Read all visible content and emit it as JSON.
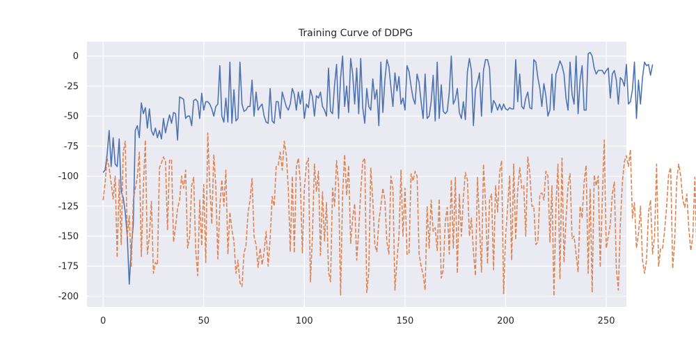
{
  "chart_data": {
    "type": "line",
    "title": "Training Curve of DDPG",
    "xlabel": "",
    "ylabel": "",
    "xlim": [
      -8,
      260
    ],
    "ylim": [
      -209,
      12
    ],
    "xticks": [
      0,
      50,
      100,
      150,
      200,
      250
    ],
    "yticks": [
      0,
      -25,
      -50,
      -75,
      -100,
      -125,
      -150,
      -175,
      -200
    ],
    "grid": true,
    "legend": "none",
    "colors": {
      "background": "#eaeaf2",
      "grid": "#ffffff",
      "series1": "#4c72b0",
      "series2": "#dd8452"
    },
    "series": [
      {
        "style": "solid",
        "color": "#4c72b0",
        "x_start": 0,
        "values": [
          -97,
          -95,
          -82,
          -62,
          -92,
          -68,
          -90,
          -92,
          -69,
          -113,
          -118,
          -130,
          -150,
          -190,
          -160,
          -140,
          -62,
          -58,
          -68,
          -39,
          -48,
          -43,
          -60,
          -44,
          -62,
          -66,
          -60,
          -68,
          -62,
          -69,
          -52,
          -64,
          -56,
          -49,
          -56,
          -47,
          -48,
          -70,
          -34,
          -35,
          -36,
          -52,
          -50,
          -50,
          -58,
          -37,
          -36,
          -38,
          -52,
          -31,
          -45,
          -38,
          -38,
          -40,
          -44,
          -50,
          -42,
          -40,
          -8,
          -50,
          -55,
          -35,
          -55,
          -5,
          -56,
          -28,
          -54,
          -52,
          -5,
          -40,
          -46,
          -45,
          -42,
          -42,
          -20,
          -50,
          -30,
          -45,
          -42,
          -40,
          -50,
          -55,
          -56,
          -27,
          -54,
          -56,
          -38,
          -38,
          -52,
          -30,
          -36,
          -42,
          -45,
          -40,
          -27,
          -32,
          -45,
          -30,
          -40,
          -29,
          -52,
          -40,
          -43,
          -28,
          -34,
          -50,
          -33,
          -35,
          -30,
          -42,
          -45,
          -50,
          -10,
          -46,
          -48,
          -24,
          -7,
          -52,
          -18,
          0,
          -42,
          -25,
          -47,
          -2,
          -15,
          -40,
          -10,
          -48,
          -2,
          -43,
          -56,
          -27,
          -42,
          -45,
          -19,
          -36,
          -28,
          -58,
          -5,
          -47,
          -20,
          -3,
          -9,
          -26,
          -42,
          -14,
          -29,
          -17,
          -40,
          -35,
          -45,
          -8,
          -13,
          -25,
          -35,
          -40,
          -15,
          -22,
          -38,
          -52,
          -15,
          -52,
          -50,
          -38,
          -16,
          -54,
          -5,
          -52,
          -24,
          -46,
          -48,
          -46,
          -30,
          0,
          -40,
          -36,
          -27,
          -47,
          -52,
          -38,
          -53,
          -13,
          -2,
          -12,
          -58,
          -28,
          -22,
          -14,
          -50,
          -12,
          -3,
          -3,
          -10,
          -47,
          -37,
          -40,
          -45,
          -40,
          -45,
          -40,
          -44,
          -45,
          -43,
          -44,
          -44,
          -3,
          -38,
          -15,
          -42,
          -44,
          -35,
          -30,
          -43,
          -44,
          -3,
          -5,
          -18,
          -27,
          -42,
          -23,
          -33,
          -50,
          -45,
          -15,
          -45,
          -15,
          -10,
          -4,
          -8,
          -15,
          -35,
          -45,
          -5,
          -32,
          -40,
          0,
          -48,
          -20,
          -8,
          -45,
          -45,
          2,
          3,
          0,
          -10,
          -15,
          -12,
          -12,
          -12,
          -15,
          -12,
          -10,
          -35,
          -15,
          -12,
          -20,
          -40,
          -18,
          -20,
          -25,
          -7,
          -40,
          -38,
          -28,
          -5,
          -52,
          -20,
          -40,
          -18,
          -5,
          -8,
          -7,
          -16,
          -7
        ]
      },
      {
        "style": "dashed",
        "color": "#dd8452",
        "x_start": 0,
        "values": [
          -120,
          -106,
          -85,
          -93,
          -106,
          -119,
          -100,
          -168,
          -103,
          -157,
          -80,
          -71,
          -150,
          -133,
          -176,
          -120,
          -110,
          -101,
          -80,
          -167,
          -110,
          -70,
          -165,
          -150,
          -121,
          -181,
          -172,
          -174,
          -93,
          -89,
          -84,
          -88,
          -145,
          -87,
          -86,
          -155,
          -142,
          -127,
          -120,
          -100,
          -110,
          -95,
          -160,
          -150,
          -108,
          -101,
          -161,
          -183,
          -120,
          -158,
          -107,
          -172,
          -64,
          -108,
          -140,
          -82,
          -108,
          -169,
          -125,
          -103,
          -125,
          -95,
          -165,
          -130,
          -145,
          -154,
          -181,
          -170,
          -189,
          -192,
          -164,
          -158,
          -131,
          -120,
          -102,
          -150,
          -157,
          -176,
          -160,
          -174,
          -163,
          -146,
          -175,
          -152,
          -117,
          -125,
          -92,
          -91,
          -80,
          -95,
          -71,
          -82,
          -110,
          -163,
          -100,
          -164,
          -93,
          -85,
          -105,
          -164,
          -110,
          -90,
          -85,
          -188,
          -150,
          -90,
          -113,
          -96,
          -166,
          -113,
          -154,
          -122,
          -180,
          -188,
          -110,
          -125,
          -87,
          -108,
          -199,
          -115,
          -82,
          -116,
          -91,
          -156,
          -135,
          -123,
          -170,
          -145,
          -113,
          -88,
          -85,
          -197,
          -180,
          -93,
          -120,
          -157,
          -163,
          -138,
          -125,
          -110,
          -120,
          -155,
          -165,
          -100,
          -110,
          -195,
          -170,
          -150,
          -95,
          -150,
          -110,
          -165,
          -165,
          -98,
          -104,
          -96,
          -100,
          -165,
          -175,
          -182,
          -195,
          -125,
          -160,
          -120,
          -146,
          -143,
          -162,
          -119,
          -185,
          -178,
          -138,
          -126,
          -165,
          -103,
          -160,
          -101,
          -181,
          -115,
          -150,
          -118,
          -97,
          -103,
          -150,
          -135,
          -163,
          -183,
          -101,
          -140,
          -180,
          -90,
          -122,
          -173,
          -120,
          -115,
          -178,
          -108,
          -130,
          -97,
          -87,
          -198,
          -150,
          -125,
          -100,
          -170,
          -90,
          -153,
          -112,
          -93,
          -110,
          -108,
          -150,
          -84,
          -97,
          -125,
          -125,
          -157,
          -155,
          -115,
          -114,
          -120,
          -96,
          -100,
          -155,
          -108,
          -200,
          -125,
          -90,
          -186,
          -85,
          -172,
          -135,
          -108,
          -98,
          -152,
          -150,
          -165,
          -180,
          -125,
          -135,
          -105,
          -91,
          -181,
          -111,
          -197,
          -99,
          -108,
          -100,
          -176,
          -120,
          -70,
          -160,
          -150,
          -140,
          -115,
          -105,
          -177,
          -195,
          -140,
          -105,
          -88,
          -83,
          -92,
          -78,
          -135,
          -122,
          -160,
          -148,
          -125,
          -170,
          -181,
          -170,
          -130,
          -120,
          -165,
          -150,
          -90,
          -175,
          -160,
          -160,
          -145,
          -125,
          -98,
          -93,
          -177,
          -154,
          -103,
          -90,
          -100,
          -120,
          -126,
          -115,
          -143,
          -162,
          -150,
          -101,
          -165,
          -160,
          -160,
          -160,
          -170,
          -150,
          -100,
          -110,
          -173,
          -120,
          -180,
          -125,
          -113,
          -100,
          -185,
          -170,
          -174,
          -155,
          -100,
          -110,
          -173,
          -110,
          -100,
          -102,
          -155,
          -180,
          -160,
          -150,
          -84,
          -90,
          -95,
          -173,
          -152,
          -140,
          -125,
          -115,
          -170,
          -185,
          -173,
          -170,
          -150,
          -100,
          -160,
          -165,
          -156,
          -86,
          -95,
          -92
        ]
      }
    ]
  }
}
